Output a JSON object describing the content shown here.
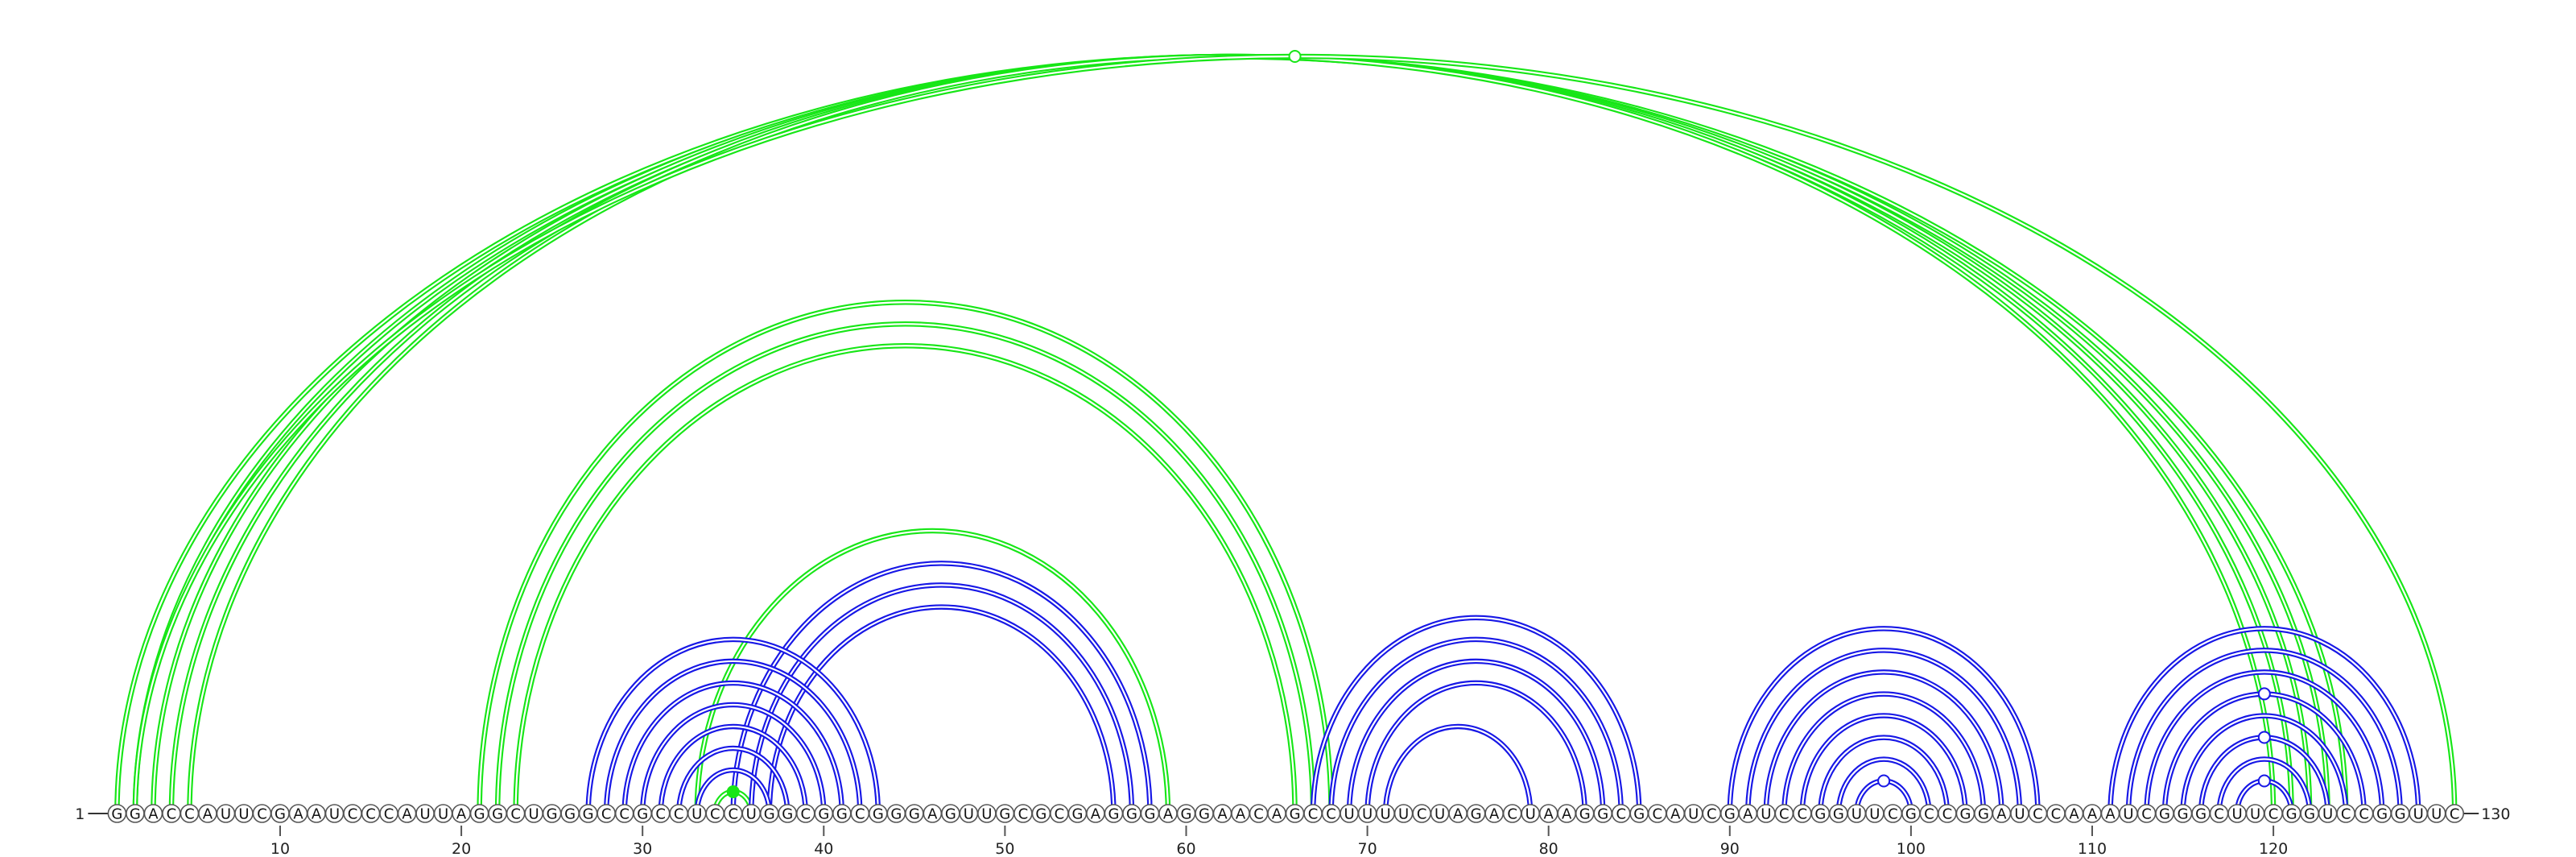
{
  "sequence": "GGACCAUUCGAAUCCCAUUAGGCUGGGCCGCCUCCUGGCGGCGGGAGUUGCGCGAGGGAGGAACAGCCUUUUCUAGACUAAGGCGCAUCGAUCCGGUUCGCCGGAUCCAAAUCGGGCUUCGGUCCGGUUC",
  "start_label": "1",
  "end_label": "130",
  "tick_labels": [
    "10",
    "20",
    "30",
    "40",
    "50",
    "60",
    "70",
    "80",
    "90",
    "100",
    "110",
    "120"
  ],
  "colors": {
    "green": "#17e617",
    "blue": "#1717e6"
  },
  "arcs": [
    {
      "i": 1,
      "j": 124,
      "color": "green"
    },
    {
      "i": 2,
      "j": 123,
      "color": "green"
    },
    {
      "i": 3,
      "j": 122,
      "color": "green"
    },
    {
      "i": 4,
      "j": 121,
      "color": "green"
    },
    {
      "i": 5,
      "j": 120,
      "color": "green"
    },
    {
      "i": 2,
      "j": 130,
      "color": "green"
    },
    {
      "i": 21,
      "j": 68,
      "color": "green"
    },
    {
      "i": 22,
      "j": 67,
      "color": "green"
    },
    {
      "i": 23,
      "j": 66,
      "color": "green"
    },
    {
      "i": 33,
      "j": 59,
      "color": "green"
    },
    {
      "i": 34,
      "j": 36,
      "color": "green"
    },
    {
      "i": 35,
      "j": 58,
      "color": "blue"
    },
    {
      "i": 36,
      "j": 57,
      "color": "blue"
    },
    {
      "i": 37,
      "j": 56,
      "color": "blue"
    },
    {
      "i": 27,
      "j": 43,
      "color": "blue"
    },
    {
      "i": 28,
      "j": 42,
      "color": "blue"
    },
    {
      "i": 29,
      "j": 41,
      "color": "blue"
    },
    {
      "i": 30,
      "j": 40,
      "color": "blue"
    },
    {
      "i": 31,
      "j": 39,
      "color": "blue"
    },
    {
      "i": 32,
      "j": 38,
      "color": "blue"
    },
    {
      "i": 33,
      "j": 37,
      "color": "blue"
    },
    {
      "i": 67,
      "j": 85,
      "color": "blue"
    },
    {
      "i": 68,
      "j": 84,
      "color": "blue"
    },
    {
      "i": 69,
      "j": 83,
      "color": "blue"
    },
    {
      "i": 70,
      "j": 82,
      "color": "blue"
    },
    {
      "i": 71,
      "j": 79,
      "color": "blue"
    },
    {
      "i": 90,
      "j": 107,
      "color": "blue"
    },
    {
      "i": 91,
      "j": 106,
      "color": "blue"
    },
    {
      "i": 92,
      "j": 105,
      "color": "blue"
    },
    {
      "i": 93,
      "j": 104,
      "color": "blue"
    },
    {
      "i": 94,
      "j": 103,
      "color": "blue"
    },
    {
      "i": 95,
      "j": 102,
      "color": "blue"
    },
    {
      "i": 96,
      "j": 101,
      "color": "blue"
    },
    {
      "i": 97,
      "j": 100,
      "color": "blue"
    },
    {
      "i": 111,
      "j": 128,
      "color": "blue"
    },
    {
      "i": 112,
      "j": 127,
      "color": "blue"
    },
    {
      "i": 113,
      "j": 126,
      "color": "blue"
    },
    {
      "i": 114,
      "j": 125,
      "color": "blue"
    },
    {
      "i": 115,
      "j": 124,
      "color": "blue"
    },
    {
      "i": 116,
      "j": 123,
      "color": "blue"
    },
    {
      "i": 117,
      "j": 122,
      "color": "blue"
    },
    {
      "i": 118,
      "j": 121,
      "color": "blue"
    }
  ],
  "markers": [
    {
      "a": 2,
      "b": 130,
      "color": "green",
      "filled": false
    },
    {
      "a": 34,
      "b": 36,
      "color": "green",
      "filled": true
    },
    {
      "a": 97,
      "b": 100,
      "color": "blue",
      "filled": false
    },
    {
      "a": 114,
      "b": 125,
      "color": "blue",
      "filled": false
    },
    {
      "a": 116,
      "b": 123,
      "color": "blue",
      "filled": false
    },
    {
      "a": 118,
      "b": 121,
      "color": "blue",
      "filled": false
    }
  ]
}
